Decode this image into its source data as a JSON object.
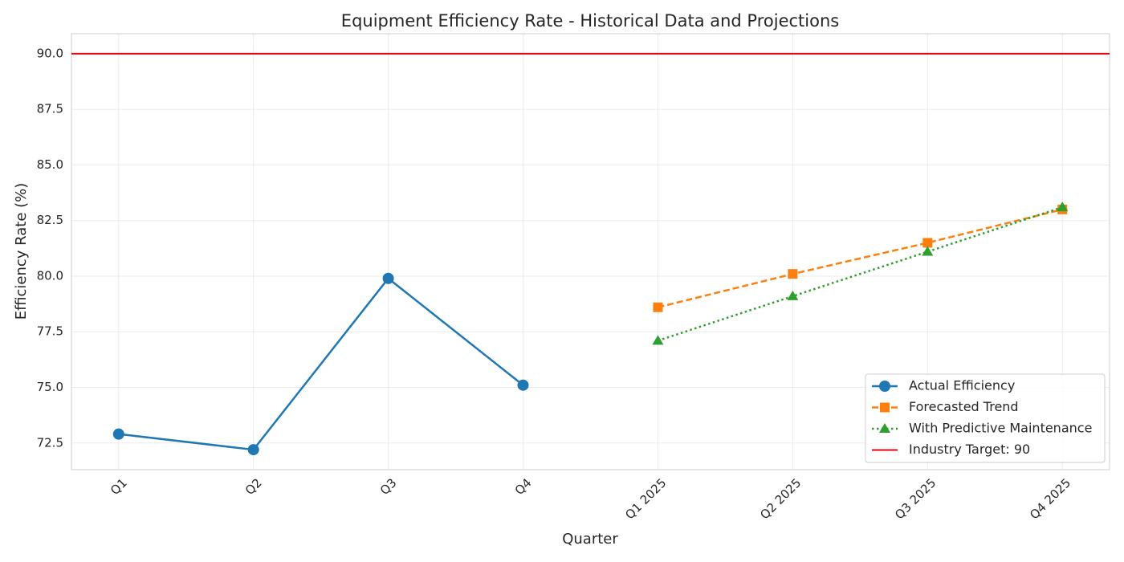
{
  "chart_data": {
    "type": "line",
    "title": "Equipment Efficiency Rate - Historical Data and Projections",
    "xlabel": "Quarter",
    "ylabel": "Efficiency Rate (%)",
    "categories": [
      "Q1",
      "Q2",
      "Q3",
      "Q4",
      "Q1 2025",
      "Q2 2025",
      "Q3 2025",
      "Q4 2025"
    ],
    "series": [
      {
        "name": "Actual Efficiency",
        "color": "#1f77b4",
        "marker": "circle",
        "linestyle": "solid",
        "values": [
          72.9,
          72.2,
          79.9,
          75.1,
          null,
          null,
          null,
          null
        ]
      },
      {
        "name": "Forecasted Trend",
        "color": "#ff7f0e",
        "marker": "square",
        "linestyle": "dashed",
        "values": [
          null,
          null,
          null,
          null,
          78.6,
          80.1,
          81.5,
          83.0
        ]
      },
      {
        "name": "With Predictive Maintenance",
        "color": "#2ca02c",
        "marker": "triangle",
        "linestyle": "dotted",
        "values": [
          null,
          null,
          null,
          null,
          77.1,
          79.1,
          81.1,
          83.1
        ]
      }
    ],
    "target": {
      "name": "Industry Target: 90",
      "value": 90,
      "color": "#e8000b"
    },
    "ylim": [
      71.3,
      90.9
    ],
    "yticks": [
      72.5,
      {
        "value": 75,
        "label": "75.0"
      },
      77.5,
      {
        "value": 80,
        "label": "80.0"
      },
      82.5,
      {
        "value": 85,
        "label": "85.0"
      },
      87.5,
      {
        "value": 90,
        "label": "90.0"
      }
    ],
    "grid": true,
    "legend": "lower right"
  }
}
